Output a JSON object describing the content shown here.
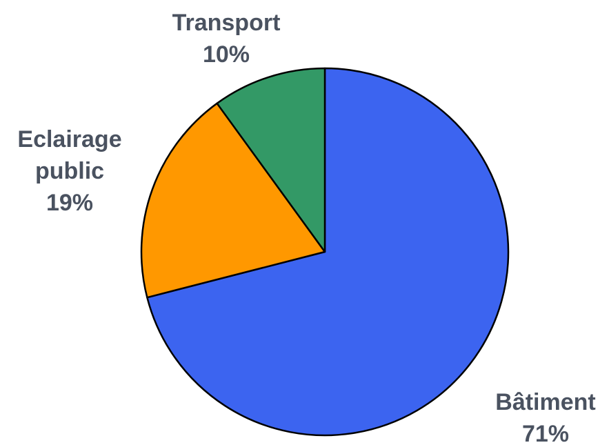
{
  "chart_data": {
    "type": "pie",
    "title": "",
    "slices": [
      {
        "label": "Bâtiment",
        "value": 71,
        "value_label": "71%",
        "color": "#3c64f0"
      },
      {
        "label": "Eclairage public",
        "value": 19,
        "value_label": "19%",
        "color": "#ff9800"
      },
      {
        "label": "Transport",
        "value": 10,
        "value_label": "10%",
        "color": "#339966"
      }
    ],
    "start_angle": "12 o'clock",
    "direction": "clockwise",
    "legend": "none"
  }
}
